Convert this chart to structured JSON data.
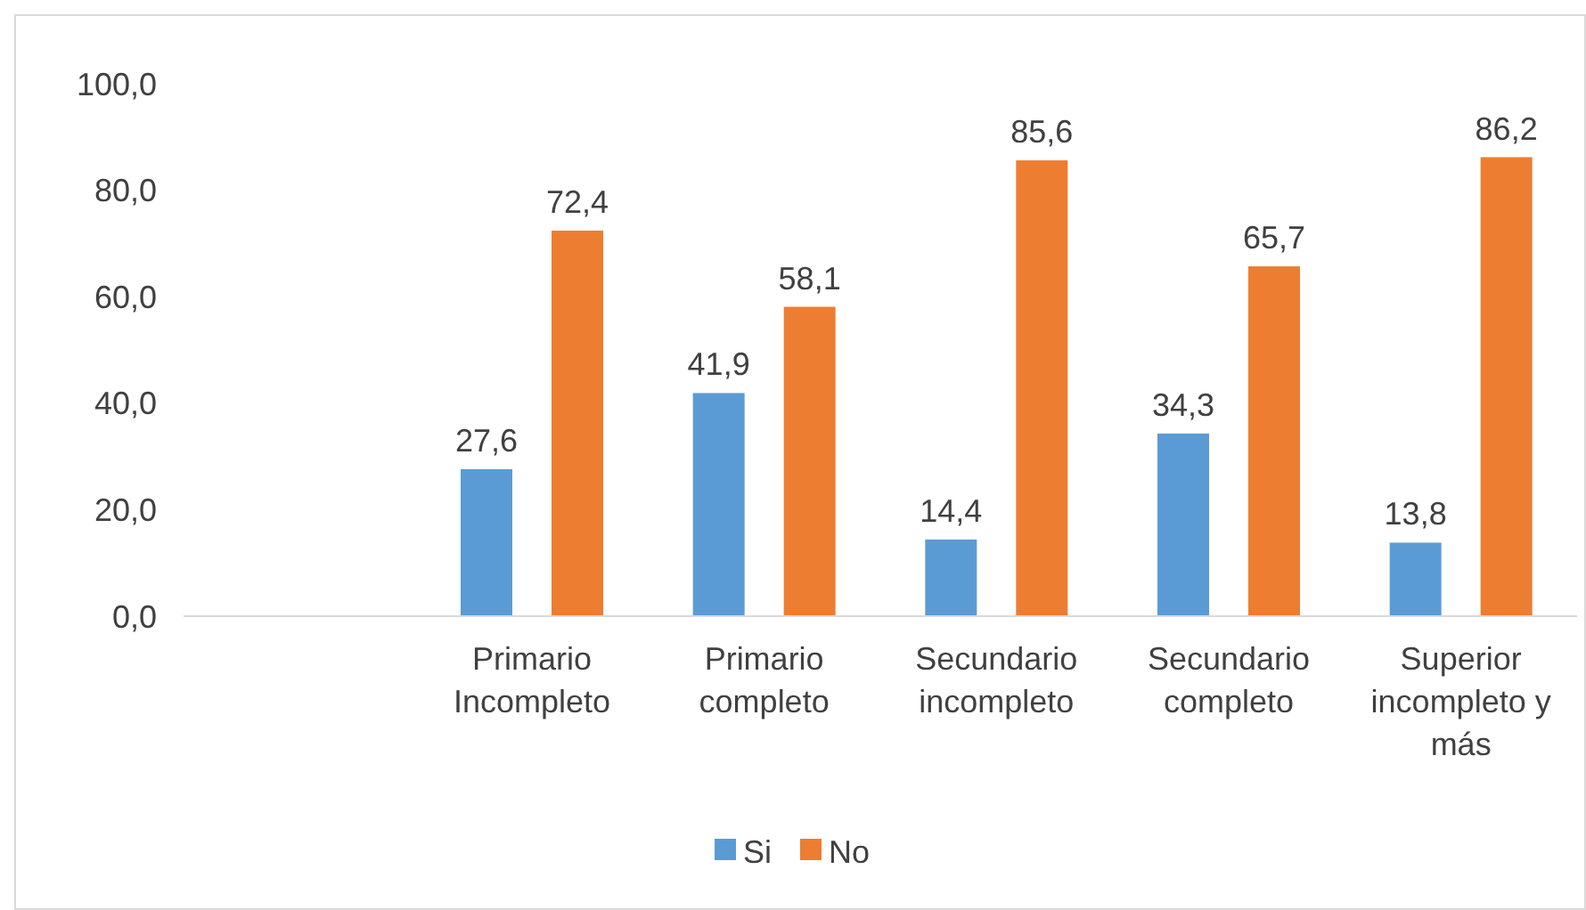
{
  "chart_data": {
    "type": "bar",
    "categories": [
      null,
      "Primario Incompleto",
      "Primario completo",
      "Secundario incompleto",
      "Secundario completo",
      "Superior incompleto y más"
    ],
    "series": [
      {
        "name": "Si",
        "color": "#5b9bd5",
        "values": [
          null,
          27.6,
          41.9,
          14.4,
          34.3,
          13.8
        ],
        "value_labels": [
          null,
          "27,6",
          "41,9",
          "14,4",
          "34,3",
          "13,8"
        ]
      },
      {
        "name": "No",
        "color": "#ed7d31",
        "values": [
          null,
          72.4,
          58.1,
          85.6,
          65.7,
          86.2
        ],
        "value_labels": [
          null,
          "72,4",
          "58,1",
          "85,6",
          "65,7",
          "86,2"
        ]
      }
    ],
    "ylim": [
      0,
      100
    ],
    "yticks": [
      {
        "value": 0,
        "label": "0,0"
      },
      {
        "value": 20,
        "label": "20,0"
      },
      {
        "value": 40,
        "label": "40,0"
      },
      {
        "value": 60,
        "label": "60,0"
      },
      {
        "value": 80,
        "label": "80,0"
      },
      {
        "value": 100,
        "label": "100,0"
      }
    ],
    "grid": false,
    "legend": "bottom"
  }
}
